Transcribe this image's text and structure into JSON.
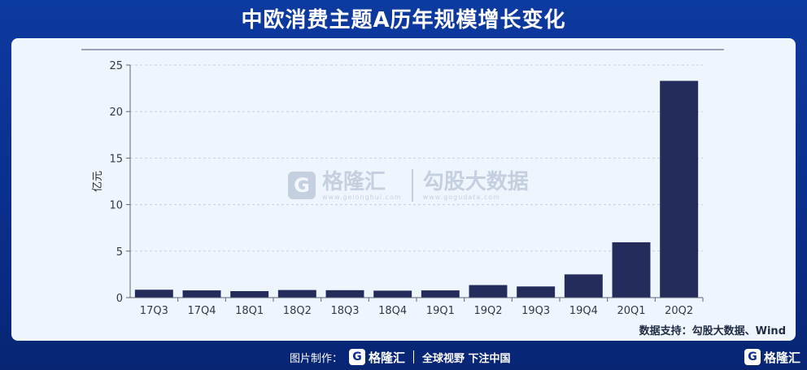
{
  "header": {
    "title": "中欧消费主题A历年规模增长变化"
  },
  "source": {
    "text": "数据支持：勾股大数据、Wind"
  },
  "watermark": {
    "logo_glyph": "G",
    "brand": "格隆汇",
    "brand_url": "www.gelonghui.com",
    "partner": "勾股大数据",
    "partner_url": "www.gogudata.com"
  },
  "footer": {
    "made_by": "图片制作：",
    "logo_glyph": "G",
    "brand": "格隆汇",
    "slogan": "全球视野 下注中国"
  },
  "colors": {
    "bar": "#242c5c",
    "background": "#0b2f8c",
    "card": "#eef5fc",
    "grid": "#c8cfdb"
  },
  "chart_data": {
    "type": "bar",
    "title": "",
    "xlabel": "",
    "ylabel": "亿元",
    "ylim": [
      0,
      25
    ],
    "yticks": [
      0,
      5,
      10,
      15,
      20,
      25
    ],
    "grid": true,
    "categories": [
      "17Q3",
      "17Q4",
      "18Q1",
      "18Q2",
      "18Q3",
      "18Q4",
      "19Q1",
      "19Q2",
      "19Q3",
      "19Q4",
      "20Q1",
      "20Q2"
    ],
    "values": [
      0.85,
      0.78,
      0.7,
      0.82,
      0.8,
      0.75,
      0.78,
      1.35,
      1.2,
      2.5,
      5.95,
      23.3
    ]
  }
}
